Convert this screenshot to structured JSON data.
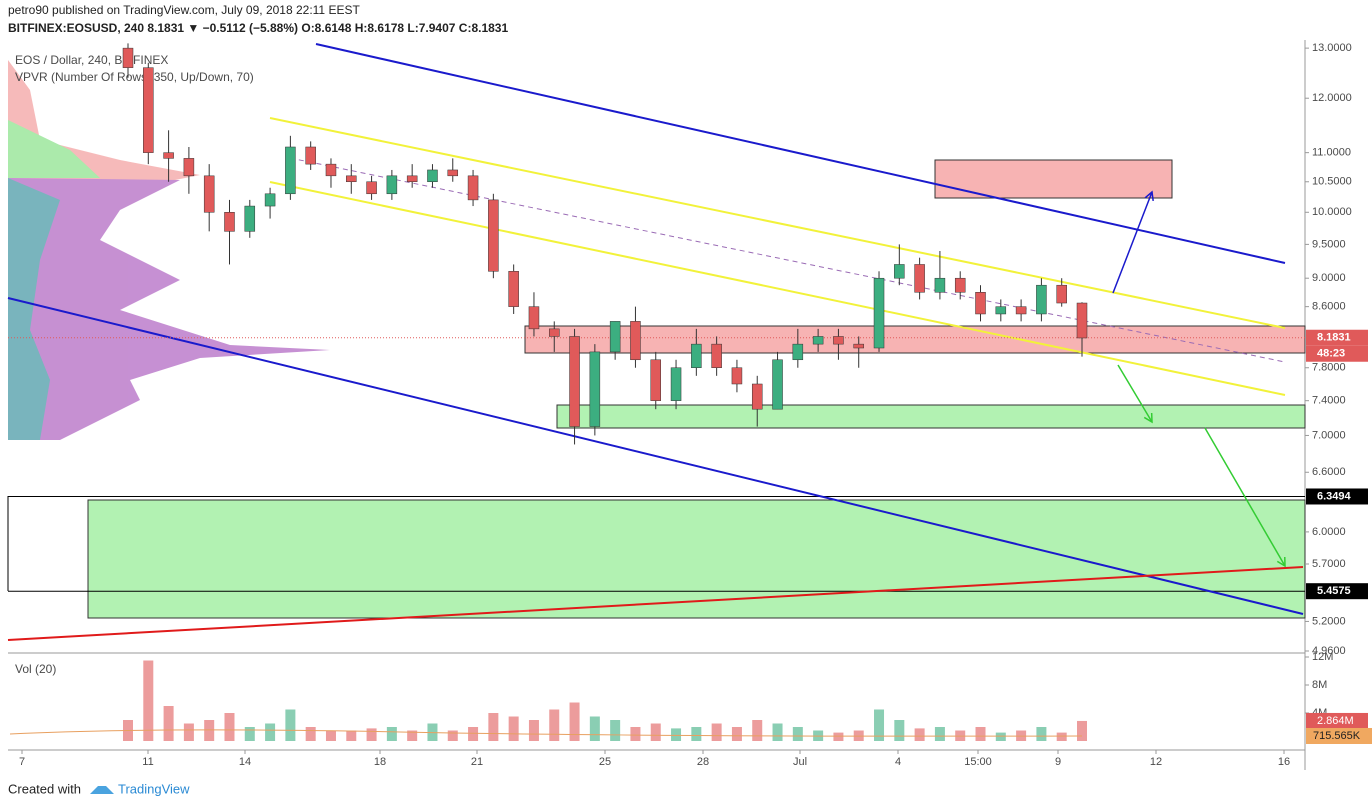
{
  "header": {
    "published": "petro90 published on TradingView.com, July 09, 2018 22:11 EEST",
    "symbol_line": "BITFINEX:EOSUSD, 240  8.1831 ▼ −0.5112 (−5.88%)  O:8.6148  H:8.6178  L:7.9407  C:8.1831"
  },
  "chart_data": {
    "type": "candlestick",
    "title": "EOS / Dollar, 240, BITFINEX",
    "subtitle": "VPVR (Number Of Rows, 350, Up/Down, 70)",
    "log_scale": true,
    "up_color": "#3cae80",
    "down_color": "#e05a5a",
    "open": [
      13.0,
      12.6,
      11.0,
      10.9,
      10.6,
      10.0,
      9.7,
      10.1,
      10.3,
      11.1,
      10.8,
      10.6,
      10.5,
      10.3,
      10.6,
      10.5,
      10.7,
      10.6,
      10.2,
      9.1,
      8.6,
      8.3,
      8.2,
      7.1,
      8.0,
      8.4,
      7.9,
      7.4,
      7.8,
      8.1,
      7.8,
      7.6,
      7.3,
      7.9,
      8.1,
      8.2,
      8.1,
      8.05,
      9.0,
      9.2,
      8.8,
      9.0,
      8.8,
      8.5,
      8.6,
      8.5,
      8.9,
      8.65
    ],
    "high": [
      13.1,
      12.7,
      11.4,
      11.1,
      10.8,
      10.2,
      10.2,
      10.4,
      11.3,
      11.2,
      10.9,
      10.8,
      10.6,
      10.7,
      10.8,
      10.8,
      10.9,
      10.7,
      10.3,
      9.2,
      8.8,
      8.4,
      8.3,
      8.1,
      8.4,
      8.6,
      8.0,
      7.9,
      8.3,
      8.2,
      7.9,
      7.7,
      8.0,
      8.3,
      8.3,
      8.3,
      8.2,
      9.1,
      9.5,
      9.3,
      9.4,
      9.1,
      8.9,
      8.7,
      8.7,
      9.0,
      9.0,
      8.66
    ],
    "low": [
      12.4,
      10.8,
      10.5,
      10.3,
      9.7,
      9.2,
      9.6,
      9.9,
      10.2,
      10.7,
      10.4,
      10.3,
      10.2,
      10.2,
      10.4,
      10.4,
      10.5,
      10.1,
      9.0,
      8.5,
      8.2,
      8.0,
      6.9,
      7.0,
      7.9,
      7.8,
      7.3,
      7.3,
      7.7,
      7.7,
      7.5,
      7.1,
      7.3,
      7.8,
      8.0,
      7.9,
      7.8,
      8.0,
      8.9,
      8.7,
      8.7,
      8.7,
      8.4,
      8.4,
      8.4,
      8.4,
      8.6,
      7.94
    ],
    "close": [
      12.6,
      11.0,
      10.9,
      10.6,
      10.0,
      9.7,
      10.1,
      10.3,
      11.1,
      10.8,
      10.6,
      10.5,
      10.3,
      10.6,
      10.5,
      10.7,
      10.6,
      10.2,
      9.1,
      8.6,
      8.3,
      8.2,
      7.1,
      8.0,
      8.4,
      7.9,
      7.4,
      7.8,
      8.1,
      7.8,
      7.6,
      7.3,
      7.9,
      8.1,
      8.2,
      8.1,
      8.05,
      9.0,
      9.2,
      8.8,
      9.0,
      8.8,
      8.5,
      8.6,
      8.5,
      8.9,
      8.65,
      8.18
    ],
    "volume": [
      3000000,
      11500000,
      5000000,
      2500000,
      3000000,
      4000000,
      2000000,
      2500000,
      4500000,
      2000000,
      1500000,
      1500000,
      1800000,
      2000000,
      1500000,
      2500000,
      1500000,
      2000000,
      4000000,
      3500000,
      3000000,
      4500000,
      5500000,
      3500000,
      3000000,
      2000000,
      2500000,
      1800000,
      2000000,
      2500000,
      2000000,
      3000000,
      2500000,
      2000000,
      1500000,
      1200000,
      1500000,
      4500000,
      3000000,
      1800000,
      2000000,
      1500000,
      2000000,
      1200000,
      1500000,
      2000000,
      1200000,
      2864000
    ],
    "volume_title": "Vol (20)",
    "xticks": [
      "7",
      "11",
      "14",
      "18",
      "21",
      "25",
      "28",
      "Jul",
      "4",
      "15:00",
      "9",
      "12",
      "16"
    ],
    "ylim": [
      4.96,
      13.17
    ],
    "yticks": [
      {
        "value": 13,
        "label": "13.0000"
      },
      {
        "value": 12,
        "label": "12.0000"
      },
      {
        "value": 11,
        "label": "11.0000"
      },
      {
        "value": 10.5,
        "label": "10.5000"
      },
      {
        "value": 10,
        "label": "10.0000"
      },
      {
        "value": 9.5,
        "label": "9.5000"
      },
      {
        "value": 9,
        "label": "9.0000"
      },
      {
        "value": 8.6,
        "label": "8.6000"
      },
      {
        "value": 7.8,
        "label": "7.8000"
      },
      {
        "value": 7.4,
        "label": "7.4000"
      },
      {
        "value": 7,
        "label": "7.0000"
      },
      {
        "value": 6.6,
        "label": "6.6000"
      },
      {
        "value": 6,
        "label": "6.0000"
      },
      {
        "value": 5.7,
        "label": "5.7000"
      },
      {
        "value": 5.2,
        "label": "5.2000"
      },
      {
        "value": 4.96,
        "label": "4.9600"
      }
    ],
    "vlim": [
      0,
      12000000
    ],
    "vticks": [
      {
        "value": 12000000,
        "label": "12M"
      },
      {
        "value": 8000000,
        "label": "8M"
      },
      {
        "value": 4000000,
        "label": "4M"
      }
    ],
    "last_price": 8.1831,
    "countdown": "48:23",
    "levels": [
      6.3494,
      5.4575
    ],
    "last_volume": {
      "value": 2864000,
      "label": "2.864M"
    },
    "volume_ma": {
      "value": 715565,
      "label": "715.565K"
    }
  },
  "footer": {
    "created": "Created with",
    "brand": "TradingView"
  }
}
